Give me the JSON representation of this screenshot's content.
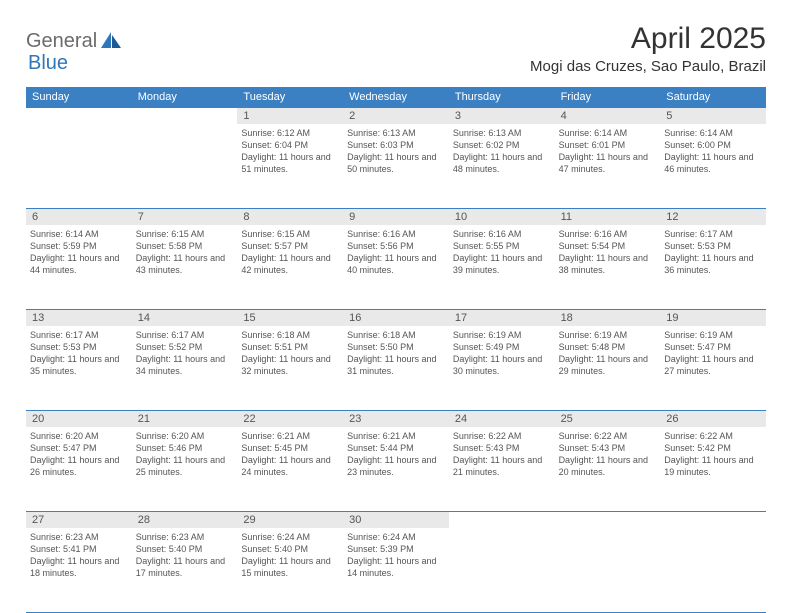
{
  "logo": {
    "part1": "General",
    "part2": "Blue"
  },
  "title": "April 2025",
  "location": "Mogi das Cruzes, Sao Paulo, Brazil",
  "colors": {
    "header_bg": "#3a80c3",
    "header_text": "#ffffff",
    "daynum_bg": "#e9e9e9",
    "body_text": "#555555",
    "title_text": "#333333",
    "logo_gray": "#6b6b6b",
    "logo_blue": "#2f77bb",
    "row_border": "#3a80c3",
    "page_bg": "#ffffff"
  },
  "fonts": {
    "title_size_pt": 30,
    "location_size_pt": 15,
    "header_cell_size_pt": 11,
    "daynum_size_pt": 11,
    "body_size_pt": 9
  },
  "weekdays": [
    "Sunday",
    "Monday",
    "Tuesday",
    "Wednesday",
    "Thursday",
    "Friday",
    "Saturday"
  ],
  "weeks": [
    [
      null,
      null,
      {
        "n": "1",
        "sr": "Sunrise: 6:12 AM",
        "ss": "Sunset: 6:04 PM",
        "dl": "Daylight: 11 hours and 51 minutes."
      },
      {
        "n": "2",
        "sr": "Sunrise: 6:13 AM",
        "ss": "Sunset: 6:03 PM",
        "dl": "Daylight: 11 hours and 50 minutes."
      },
      {
        "n": "3",
        "sr": "Sunrise: 6:13 AM",
        "ss": "Sunset: 6:02 PM",
        "dl": "Daylight: 11 hours and 48 minutes."
      },
      {
        "n": "4",
        "sr": "Sunrise: 6:14 AM",
        "ss": "Sunset: 6:01 PM",
        "dl": "Daylight: 11 hours and 47 minutes."
      },
      {
        "n": "5",
        "sr": "Sunrise: 6:14 AM",
        "ss": "Sunset: 6:00 PM",
        "dl": "Daylight: 11 hours and 46 minutes."
      }
    ],
    [
      {
        "n": "6",
        "sr": "Sunrise: 6:14 AM",
        "ss": "Sunset: 5:59 PM",
        "dl": "Daylight: 11 hours and 44 minutes."
      },
      {
        "n": "7",
        "sr": "Sunrise: 6:15 AM",
        "ss": "Sunset: 5:58 PM",
        "dl": "Daylight: 11 hours and 43 minutes."
      },
      {
        "n": "8",
        "sr": "Sunrise: 6:15 AM",
        "ss": "Sunset: 5:57 PM",
        "dl": "Daylight: 11 hours and 42 minutes."
      },
      {
        "n": "9",
        "sr": "Sunrise: 6:16 AM",
        "ss": "Sunset: 5:56 PM",
        "dl": "Daylight: 11 hours and 40 minutes."
      },
      {
        "n": "10",
        "sr": "Sunrise: 6:16 AM",
        "ss": "Sunset: 5:55 PM",
        "dl": "Daylight: 11 hours and 39 minutes."
      },
      {
        "n": "11",
        "sr": "Sunrise: 6:16 AM",
        "ss": "Sunset: 5:54 PM",
        "dl": "Daylight: 11 hours and 38 minutes."
      },
      {
        "n": "12",
        "sr": "Sunrise: 6:17 AM",
        "ss": "Sunset: 5:53 PM",
        "dl": "Daylight: 11 hours and 36 minutes."
      }
    ],
    [
      {
        "n": "13",
        "sr": "Sunrise: 6:17 AM",
        "ss": "Sunset: 5:53 PM",
        "dl": "Daylight: 11 hours and 35 minutes."
      },
      {
        "n": "14",
        "sr": "Sunrise: 6:17 AM",
        "ss": "Sunset: 5:52 PM",
        "dl": "Daylight: 11 hours and 34 minutes."
      },
      {
        "n": "15",
        "sr": "Sunrise: 6:18 AM",
        "ss": "Sunset: 5:51 PM",
        "dl": "Daylight: 11 hours and 32 minutes."
      },
      {
        "n": "16",
        "sr": "Sunrise: 6:18 AM",
        "ss": "Sunset: 5:50 PM",
        "dl": "Daylight: 11 hours and 31 minutes."
      },
      {
        "n": "17",
        "sr": "Sunrise: 6:19 AM",
        "ss": "Sunset: 5:49 PM",
        "dl": "Daylight: 11 hours and 30 minutes."
      },
      {
        "n": "18",
        "sr": "Sunrise: 6:19 AM",
        "ss": "Sunset: 5:48 PM",
        "dl": "Daylight: 11 hours and 29 minutes."
      },
      {
        "n": "19",
        "sr": "Sunrise: 6:19 AM",
        "ss": "Sunset: 5:47 PM",
        "dl": "Daylight: 11 hours and 27 minutes."
      }
    ],
    [
      {
        "n": "20",
        "sr": "Sunrise: 6:20 AM",
        "ss": "Sunset: 5:47 PM",
        "dl": "Daylight: 11 hours and 26 minutes."
      },
      {
        "n": "21",
        "sr": "Sunrise: 6:20 AM",
        "ss": "Sunset: 5:46 PM",
        "dl": "Daylight: 11 hours and 25 minutes."
      },
      {
        "n": "22",
        "sr": "Sunrise: 6:21 AM",
        "ss": "Sunset: 5:45 PM",
        "dl": "Daylight: 11 hours and 24 minutes."
      },
      {
        "n": "23",
        "sr": "Sunrise: 6:21 AM",
        "ss": "Sunset: 5:44 PM",
        "dl": "Daylight: 11 hours and 23 minutes."
      },
      {
        "n": "24",
        "sr": "Sunrise: 6:22 AM",
        "ss": "Sunset: 5:43 PM",
        "dl": "Daylight: 11 hours and 21 minutes."
      },
      {
        "n": "25",
        "sr": "Sunrise: 6:22 AM",
        "ss": "Sunset: 5:43 PM",
        "dl": "Daylight: 11 hours and 20 minutes."
      },
      {
        "n": "26",
        "sr": "Sunrise: 6:22 AM",
        "ss": "Sunset: 5:42 PM",
        "dl": "Daylight: 11 hours and 19 minutes."
      }
    ],
    [
      {
        "n": "27",
        "sr": "Sunrise: 6:23 AM",
        "ss": "Sunset: 5:41 PM",
        "dl": "Daylight: 11 hours and 18 minutes."
      },
      {
        "n": "28",
        "sr": "Sunrise: 6:23 AM",
        "ss": "Sunset: 5:40 PM",
        "dl": "Daylight: 11 hours and 17 minutes."
      },
      {
        "n": "29",
        "sr": "Sunrise: 6:24 AM",
        "ss": "Sunset: 5:40 PM",
        "dl": "Daylight: 11 hours and 15 minutes."
      },
      {
        "n": "30",
        "sr": "Sunrise: 6:24 AM",
        "ss": "Sunset: 5:39 PM",
        "dl": "Daylight: 11 hours and 14 minutes."
      },
      null,
      null,
      null
    ]
  ]
}
